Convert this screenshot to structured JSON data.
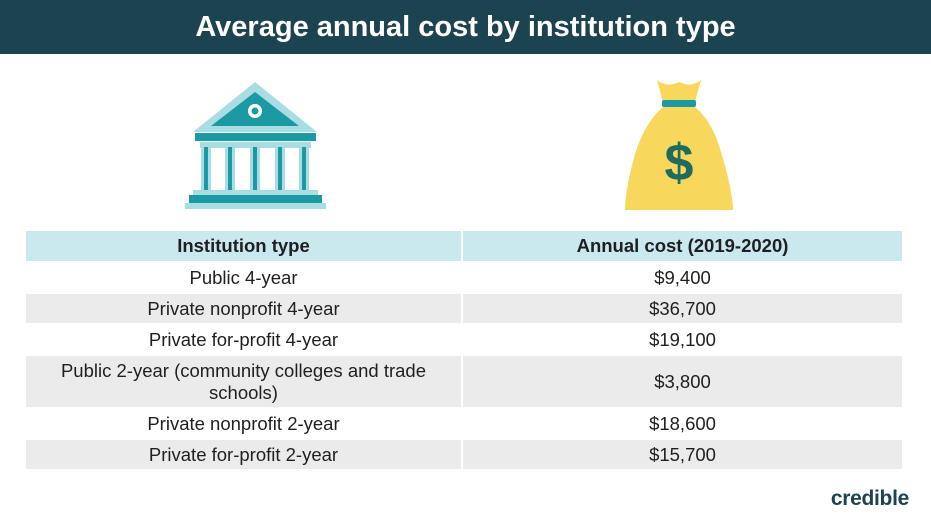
{
  "header": {
    "title": "Average annual cost by institution type"
  },
  "icons": {
    "left": "bank-building-icon",
    "right": "money-bag-icon"
  },
  "colors": {
    "header_bg": "#1b4350",
    "teal": "#1c9aa3",
    "light_teal": "#c9e9ef",
    "gold": "#f8d85c",
    "row_alt": "#ebebeb"
  },
  "chart_data": {
    "type": "table",
    "title": "Average annual cost by institution type",
    "columns": [
      "Institution type",
      "Annual cost (2019-2020)"
    ],
    "rows": [
      [
        "Public 4-year",
        "$9,400"
      ],
      [
        "Private nonprofit 4-year",
        "$36,700"
      ],
      [
        "Private for-profit 4-year",
        "$19,100"
      ],
      [
        "Public 2-year (community colleges and trade schools)",
        "$3,800"
      ],
      [
        "Private nonprofit 2-year",
        "$18,600"
      ],
      [
        "Private for-profit 2-year",
        "$15,700"
      ]
    ]
  },
  "footer": {
    "brand": "credible"
  }
}
